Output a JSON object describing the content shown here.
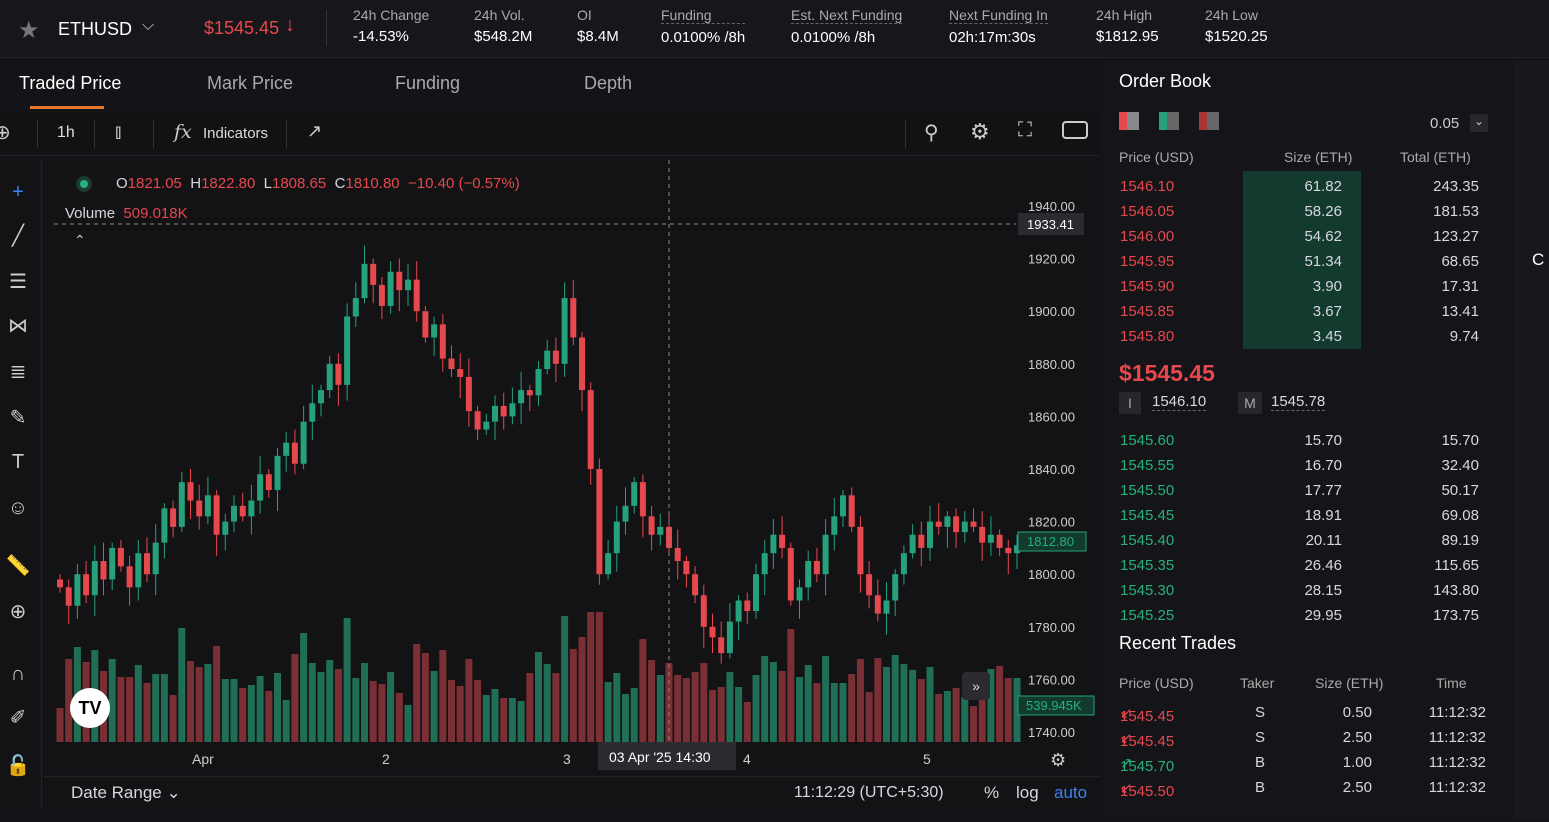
{
  "header": {
    "symbol": "ETHUSD",
    "price": "$1545.45",
    "stats": [
      {
        "label": "24h Change",
        "value": "-14.53%"
      },
      {
        "label": "24h Vol.",
        "value": "$548.2M"
      },
      {
        "label": "OI",
        "value": "$8.4M"
      },
      {
        "label": "Funding",
        "value": "0.0100% /8h"
      },
      {
        "label": "Est. Next Funding",
        "value": "0.0100% /8h"
      },
      {
        "label": "Next Funding In",
        "value": "02h:17m:30s"
      },
      {
        "label": "24h High",
        "value": "$1812.95"
      },
      {
        "label": "24h Low",
        "value": "$1520.25"
      }
    ]
  },
  "tabs": [
    "Traded Price",
    "Mark Price",
    "Funding",
    "Depth"
  ],
  "toolbar": {
    "interval": "1h",
    "indicators": "Indicators"
  },
  "legend": {
    "o": "1821.05",
    "h": "1822.80",
    "l": "1808.65",
    "c": "1810.80",
    "change": "−10.40 (−0.57%)",
    "volume_label": "Volume",
    "volume": "509.018K"
  },
  "chart_data": {
    "type": "candlestick",
    "ylim": [
      1740,
      1940
    ],
    "y_ticks": [
      "1940.00",
      "1920.00",
      "1900.00",
      "1880.00",
      "1860.00",
      "1840.00",
      "1820.00",
      "1800.00",
      "1780.00",
      "1760.00",
      "1740.00"
    ],
    "x_ticks": [
      "Apr",
      "2",
      "3",
      "4",
      "5"
    ],
    "crosshair_price": "1933.41",
    "crosshair_time": "03 Apr '25   14:30",
    "last_price": "1812.80",
    "last_volume": "539.945K",
    "closes": [
      1795,
      1788,
      1800,
      1792,
      1805,
      1798,
      1810,
      1803,
      1795,
      1808,
      1800,
      1812,
      1825,
      1818,
      1835,
      1828,
      1822,
      1830,
      1815,
      1820,
      1826,
      1822,
      1828,
      1838,
      1832,
      1845,
      1850,
      1842,
      1858,
      1865,
      1870,
      1880,
      1872,
      1898,
      1905,
      1918,
      1910,
      1902,
      1915,
      1908,
      1912,
      1900,
      1890,
      1895,
      1882,
      1878,
      1875,
      1862,
      1855,
      1858,
      1864,
      1860,
      1865,
      1870,
      1868,
      1878,
      1885,
      1880,
      1905,
      1890,
      1870,
      1840,
      1800,
      1808,
      1820,
      1826,
      1835,
      1822,
      1815,
      1818,
      1810,
      1805,
      1800,
      1792,
      1780,
      1776,
      1770,
      1782,
      1790,
      1786,
      1800,
      1808,
      1815,
      1810,
      1790,
      1795,
      1805,
      1800,
      1815,
      1822,
      1830,
      1818,
      1800,
      1792,
      1785,
      1790,
      1800,
      1808,
      1815,
      1810,
      1820,
      1818,
      1822,
      1816,
      1820,
      1818,
      1812,
      1815,
      1810,
      1808,
      1811
    ],
    "up_color": "#26a17b",
    "down_color": "#e5484d"
  },
  "footer": {
    "date_range": "Date Range",
    "time": "11:12:29 (UTC+5:30)",
    "pct": "%",
    "log": "log",
    "auto": "auto"
  },
  "orderbook": {
    "title": "Order Book",
    "tick": "0.05",
    "headers": [
      "Price (USD)",
      "Size (ETH)",
      "Total (ETH)"
    ],
    "asks": [
      [
        "1546.10",
        "61.82",
        "243.35"
      ],
      [
        "1546.05",
        "58.26",
        "181.53"
      ],
      [
        "1546.00",
        "54.62",
        "123.27"
      ],
      [
        "1545.95",
        "51.34",
        "68.65"
      ],
      [
        "1545.90",
        "3.90",
        "17.31"
      ],
      [
        "1545.85",
        "3.67",
        "13.41"
      ],
      [
        "1545.80",
        "3.45",
        "9.74"
      ]
    ],
    "last": "$1545.45",
    "index_label": "I",
    "index": "1546.10",
    "mark_label": "M",
    "mark": "1545.78",
    "bids": [
      [
        "1545.60",
        "15.70",
        "15.70"
      ],
      [
        "1545.55",
        "16.70",
        "32.40"
      ],
      [
        "1545.50",
        "17.77",
        "50.17"
      ],
      [
        "1545.45",
        "18.91",
        "69.08"
      ],
      [
        "1545.40",
        "20.11",
        "89.19"
      ],
      [
        "1545.35",
        "26.46",
        "115.65"
      ],
      [
        "1545.30",
        "28.15",
        "143.80"
      ],
      [
        "1545.25",
        "29.95",
        "173.75"
      ]
    ]
  },
  "trades": {
    "title": "Recent Trades",
    "headers": [
      "Price (USD)",
      "Taker",
      "Size (ETH)",
      "Time"
    ],
    "rows": [
      [
        "1545.45",
        "S",
        "0.50",
        "11:12:32",
        "down"
      ],
      [
        "1545.45",
        "S",
        "2.50",
        "11:12:32",
        "down"
      ],
      [
        "1545.70",
        "B",
        "1.00",
        "11:12:32",
        "up"
      ],
      [
        "1545.50",
        "B",
        "2.50",
        "11:12:32",
        "down"
      ]
    ]
  },
  "edge_text": "C"
}
